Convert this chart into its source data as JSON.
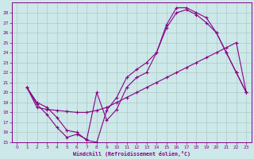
{
  "background_color": "#cce8e8",
  "grid_color": "#b0c8c8",
  "line_color": "#880088",
  "xlim": [
    -0.5,
    23.5
  ],
  "ylim": [
    15,
    29
  ],
  "xticks": [
    0,
    1,
    2,
    3,
    4,
    5,
    6,
    7,
    8,
    9,
    10,
    11,
    12,
    13,
    14,
    15,
    16,
    17,
    18,
    19,
    20,
    21,
    22,
    23
  ],
  "yticks": [
    15,
    16,
    17,
    18,
    19,
    20,
    21,
    22,
    23,
    24,
    25,
    26,
    27,
    28
  ],
  "xlabel": "Windchill (Refroidissement éolien,°C)",
  "line1_x": [
    1,
    2,
    3,
    4,
    5,
    6,
    7,
    8,
    9,
    10,
    11,
    12,
    13,
    14,
    15,
    16,
    17,
    18,
    19,
    20,
    21,
    22,
    23
  ],
  "line1_y": [
    20.5,
    18.5,
    18.3,
    18.2,
    18.1,
    18.0,
    18.0,
    18.2,
    18.5,
    19.0,
    19.5,
    20.0,
    20.5,
    21.0,
    21.5,
    22.0,
    22.5,
    23.0,
    23.5,
    24.0,
    24.5,
    25.0,
    20.0
  ],
  "line2_x": [
    1,
    2,
    3,
    4,
    5,
    6,
    7,
    8,
    9,
    10,
    11,
    12,
    13,
    14,
    15,
    16,
    17,
    18,
    19,
    20,
    21,
    22,
    23
  ],
  "line2_y": [
    20.5,
    19.0,
    18.5,
    17.5,
    16.2,
    16.0,
    15.2,
    15.0,
    18.2,
    19.5,
    21.5,
    22.3,
    23.0,
    24.0,
    26.8,
    28.5,
    28.5,
    28.0,
    27.5,
    26.0,
    24.0,
    22.0,
    20.0
  ],
  "line3_x": [
    1,
    2,
    3,
    4,
    5,
    6,
    7,
    8,
    9,
    10,
    11,
    12,
    13,
    14,
    15,
    16,
    17,
    18,
    19,
    20,
    21,
    22,
    23
  ],
  "line3_y": [
    20.5,
    18.8,
    17.8,
    16.5,
    15.5,
    15.8,
    15.3,
    20.0,
    17.2,
    18.3,
    20.5,
    21.5,
    22.0,
    24.0,
    26.5,
    28.0,
    28.3,
    27.8,
    27.0,
    26.0,
    24.0,
    22.0,
    20.0
  ]
}
